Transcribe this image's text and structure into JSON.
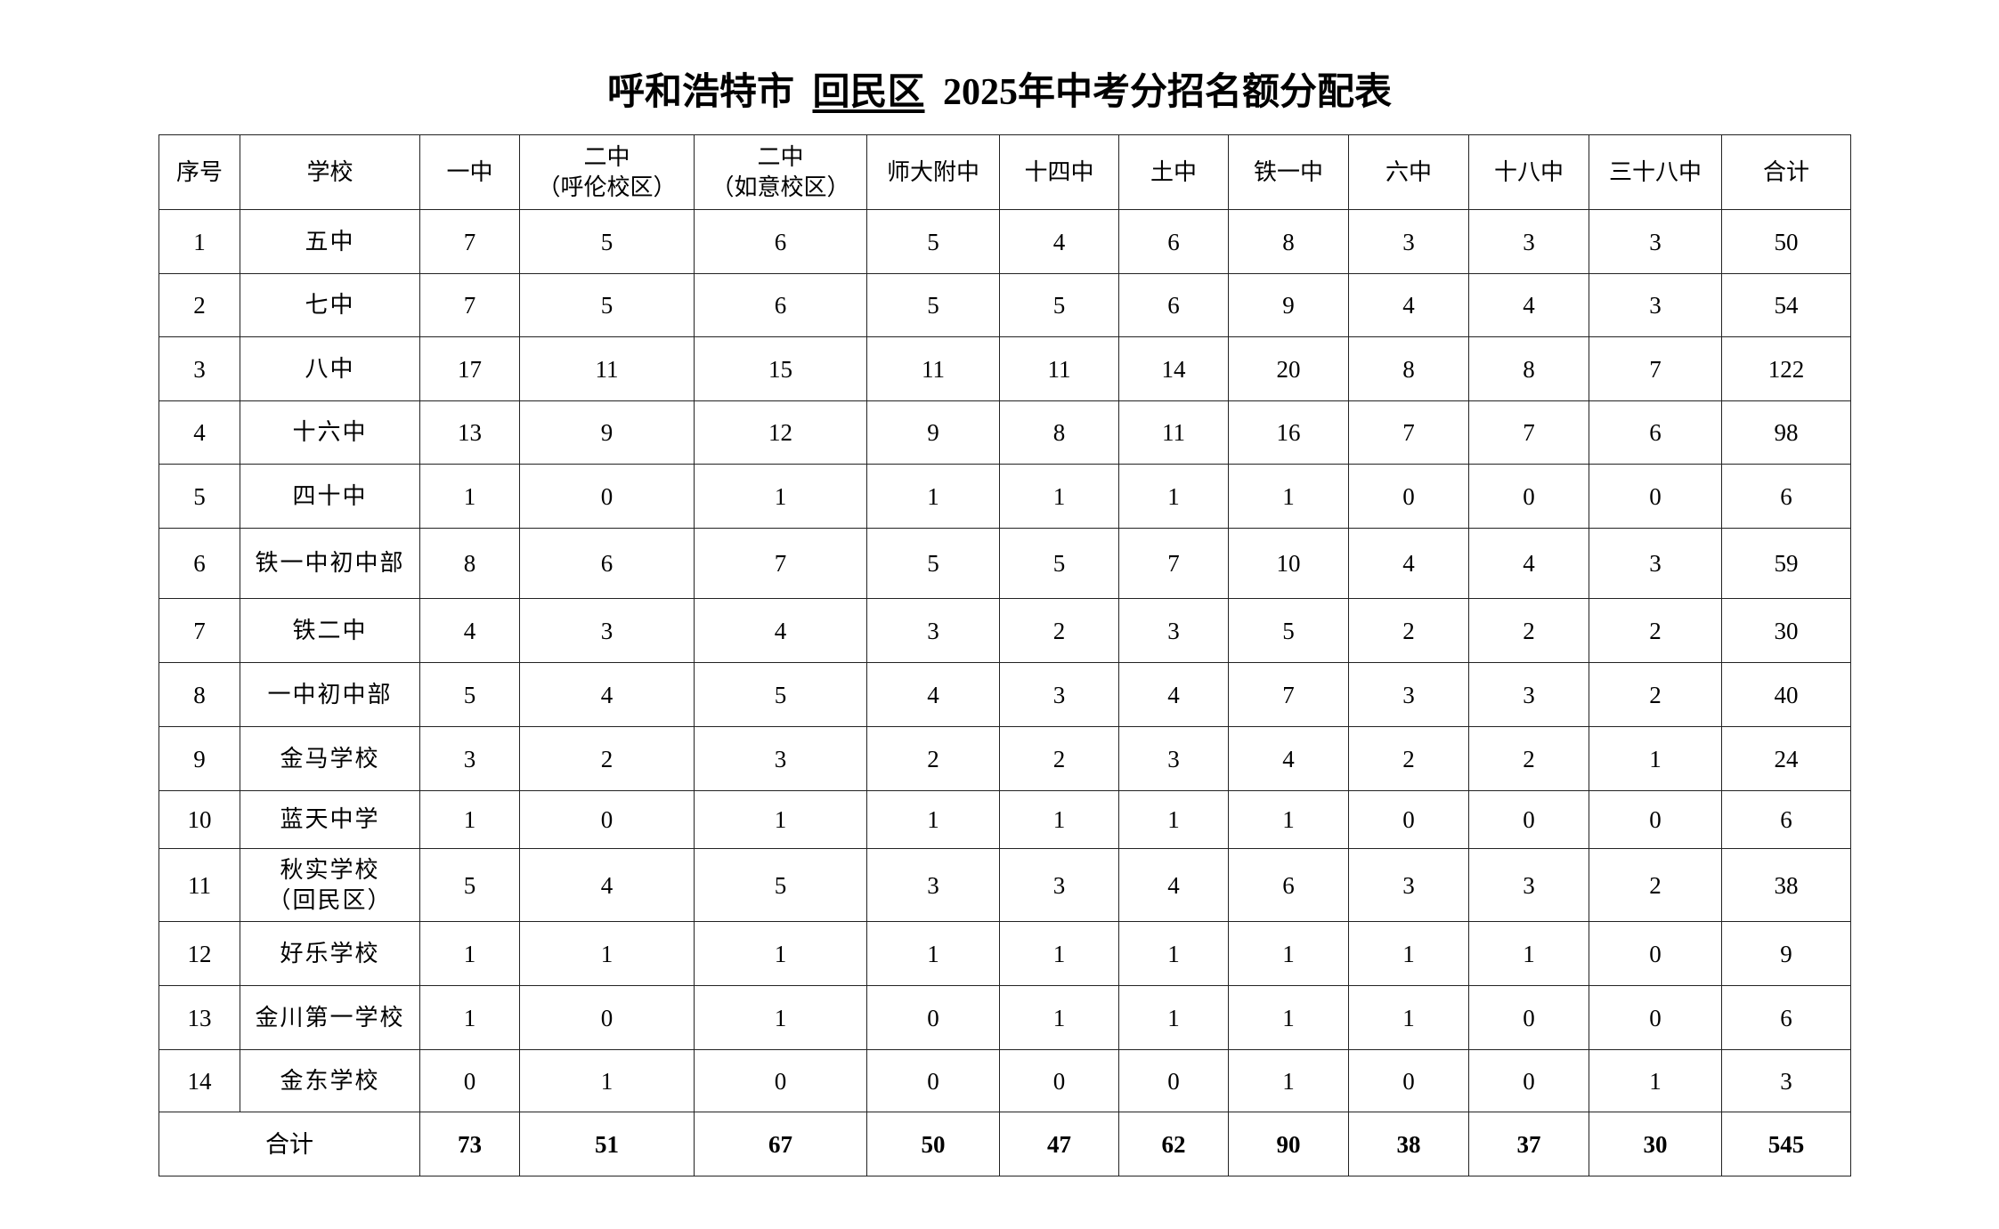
{
  "title": {
    "prefix": "呼和浩特市",
    "district": "回民区",
    "suffix": "2025年中考分招名额分配表"
  },
  "headers": [
    "序号",
    "学校",
    "一中",
    "二中\n（呼伦校区）",
    "二中\n（如意校区）",
    "师大附中",
    "十四中",
    "土中",
    "铁一中",
    "六中",
    "十八中",
    "三十八中",
    "合计"
  ],
  "rows": [
    {
      "no": "1",
      "school": "五中",
      "values": [
        "7",
        "5",
        "6",
        "5",
        "4",
        "6",
        "8",
        "3",
        "3",
        "3",
        "50"
      ]
    },
    {
      "no": "2",
      "school": "七中",
      "values": [
        "7",
        "5",
        "6",
        "5",
        "5",
        "6",
        "9",
        "4",
        "4",
        "3",
        "54"
      ]
    },
    {
      "no": "3",
      "school": "八中",
      "values": [
        "17",
        "11",
        "15",
        "11",
        "11",
        "14",
        "20",
        "8",
        "8",
        "7",
        "122"
      ]
    },
    {
      "no": "4",
      "school": "十六中",
      "values": [
        "13",
        "9",
        "12",
        "9",
        "8",
        "11",
        "16",
        "7",
        "7",
        "6",
        "98"
      ]
    },
    {
      "no": "5",
      "school": "四十中",
      "values": [
        "1",
        "0",
        "1",
        "1",
        "1",
        "1",
        "1",
        "0",
        "0",
        "0",
        "6"
      ]
    },
    {
      "no": "6",
      "school": "铁一中初中部",
      "values": [
        "8",
        "6",
        "7",
        "5",
        "5",
        "7",
        "10",
        "4",
        "4",
        "3",
        "59"
      ]
    },
    {
      "no": "7",
      "school": "铁二中",
      "values": [
        "4",
        "3",
        "4",
        "3",
        "2",
        "3",
        "5",
        "2",
        "2",
        "2",
        "30"
      ]
    },
    {
      "no": "8",
      "school": "一中初中部",
      "values": [
        "5",
        "4",
        "5",
        "4",
        "3",
        "4",
        "7",
        "3",
        "3",
        "2",
        "40"
      ]
    },
    {
      "no": "9",
      "school": "金马学校",
      "values": [
        "3",
        "2",
        "3",
        "2",
        "2",
        "3",
        "4",
        "2",
        "2",
        "1",
        "24"
      ]
    },
    {
      "no": "10",
      "school": "蓝天中学",
      "values": [
        "1",
        "0",
        "1",
        "1",
        "1",
        "1",
        "1",
        "0",
        "0",
        "0",
        "6"
      ]
    },
    {
      "no": "11",
      "school": "秋实学校\n（回民区）",
      "values": [
        "5",
        "4",
        "5",
        "3",
        "3",
        "4",
        "6",
        "3",
        "3",
        "2",
        "38"
      ]
    },
    {
      "no": "12",
      "school": "好乐学校",
      "values": [
        "1",
        "1",
        "1",
        "1",
        "1",
        "1",
        "1",
        "1",
        "1",
        "0",
        "9"
      ]
    },
    {
      "no": "13",
      "school": "金川第一学校",
      "values": [
        "1",
        "0",
        "1",
        "0",
        "1",
        "1",
        "1",
        "1",
        "0",
        "0",
        "6"
      ]
    },
    {
      "no": "14",
      "school": "金东学校",
      "values": [
        "0",
        "1",
        "0",
        "0",
        "0",
        "0",
        "1",
        "0",
        "0",
        "1",
        "3"
      ]
    }
  ],
  "total": {
    "label": "合计",
    "values": [
      "73",
      "51",
      "67",
      "50",
      "47",
      "62",
      "90",
      "38",
      "37",
      "30",
      "545"
    ]
  }
}
